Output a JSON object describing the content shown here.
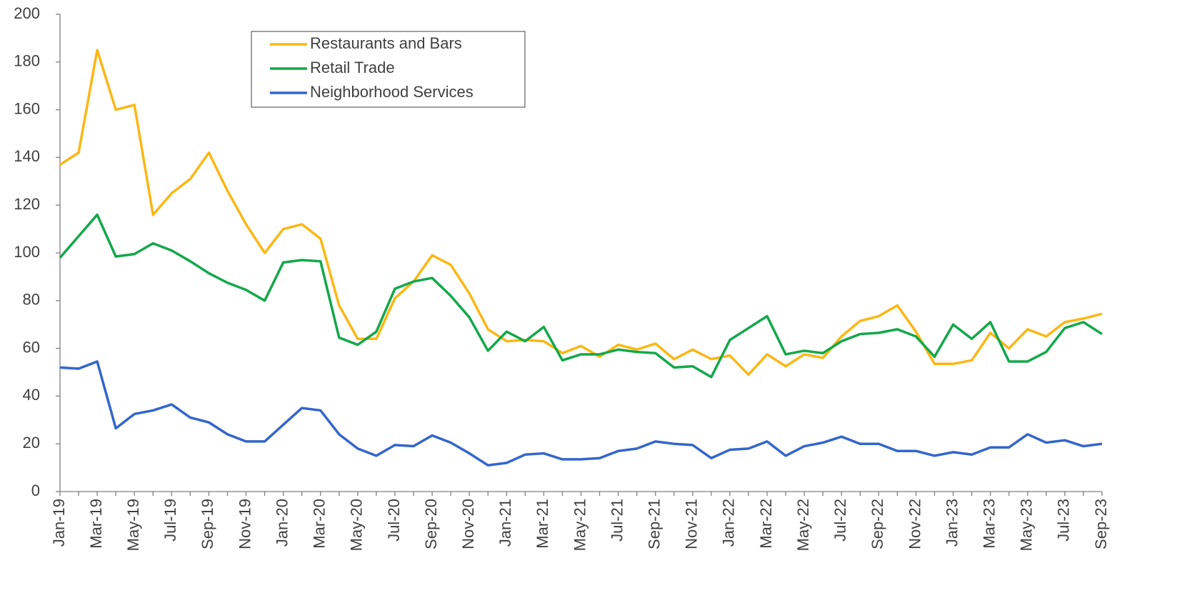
{
  "chart_data": {
    "type": "line",
    "categories": [
      "Jan-19",
      null,
      "Mar-19",
      null,
      "May-19",
      null,
      "Jul-19",
      null,
      "Sep-19",
      null,
      "Nov-19",
      null,
      "Jan-20",
      null,
      "Mar-20",
      null,
      "May-20",
      null,
      "Jul-20",
      null,
      "Sep-20",
      null,
      "Nov-20",
      null,
      "Jan-21",
      null,
      "Mar-21",
      null,
      "May-21",
      null,
      "Jul-21",
      null,
      "Sep-21",
      null,
      "Nov-21",
      null,
      "Jan-22",
      null,
      "Mar-22",
      null,
      "May-22",
      null,
      "Jul-22",
      null,
      "Sep-22",
      null,
      "Nov-22",
      null,
      "Jan-23",
      null,
      "Mar-23",
      null,
      "May-23",
      null,
      "Jul-23",
      null,
      "Sep-23"
    ],
    "series": [
      {
        "name": "Restaurants and Bars",
        "color": "#fbb714",
        "values": [
          137,
          142,
          185,
          160,
          162,
          116,
          125,
          131,
          142,
          126,
          112,
          100,
          110,
          112,
          106,
          78,
          64,
          64,
          81,
          88,
          99,
          95,
          83,
          68,
          63,
          63.5,
          63,
          58,
          61,
          56.5,
          61.5,
          59.5,
          62,
          55.5,
          59.5,
          55.5,
          57,
          49,
          57.5,
          52.5,
          57.5,
          56,
          65,
          71.5,
          73.5,
          78,
          67,
          53.5,
          53.5,
          55,
          66.5,
          60,
          68,
          65,
          71,
          72.5,
          74.5
        ]
      },
      {
        "name": "Retail Trade",
        "color": "#13a84a",
        "values": [
          98,
          107,
          116,
          98.5,
          99.5,
          104,
          101,
          96.5,
          91.5,
          87.5,
          84.5,
          80,
          96,
          97,
          96.5,
          64.5,
          61.5,
          67,
          85,
          88,
          89.5,
          82,
          73,
          59,
          67,
          63,
          69,
          55,
          57.5,
          57.5,
          59.5,
          58.5,
          58,
          52,
          52.5,
          48,
          63.5,
          68.5,
          73.5,
          57.5,
          59,
          58,
          63,
          66,
          66.5,
          68,
          65,
          56.5,
          70,
          64,
          71,
          54.5,
          54.5,
          58.5,
          68.5,
          71,
          66
        ]
      },
      {
        "name": "Neighborhood Services",
        "color": "#3366cc",
        "values": [
          52,
          51.5,
          54.5,
          26.5,
          32.5,
          34,
          36.5,
          31,
          29,
          24,
          21,
          21,
          28,
          35,
          34,
          24,
          18,
          15,
          19.5,
          19,
          23.5,
          20.5,
          16,
          11,
          12,
          15.5,
          16,
          13.5,
          13.5,
          14,
          17,
          18,
          21,
          20,
          19.5,
          14,
          17.5,
          18,
          21,
          15,
          19,
          20.5,
          23,
          20,
          20,
          17,
          17,
          15,
          16.5,
          15.5,
          18.5,
          18.5,
          24,
          20.5,
          21.5,
          19,
          20
        ]
      }
    ],
    "ylim": [
      0,
      200
    ],
    "yticks": [
      0,
      20,
      40,
      60,
      80,
      100,
      120,
      140,
      160,
      180,
      200
    ],
    "grid": false
  }
}
